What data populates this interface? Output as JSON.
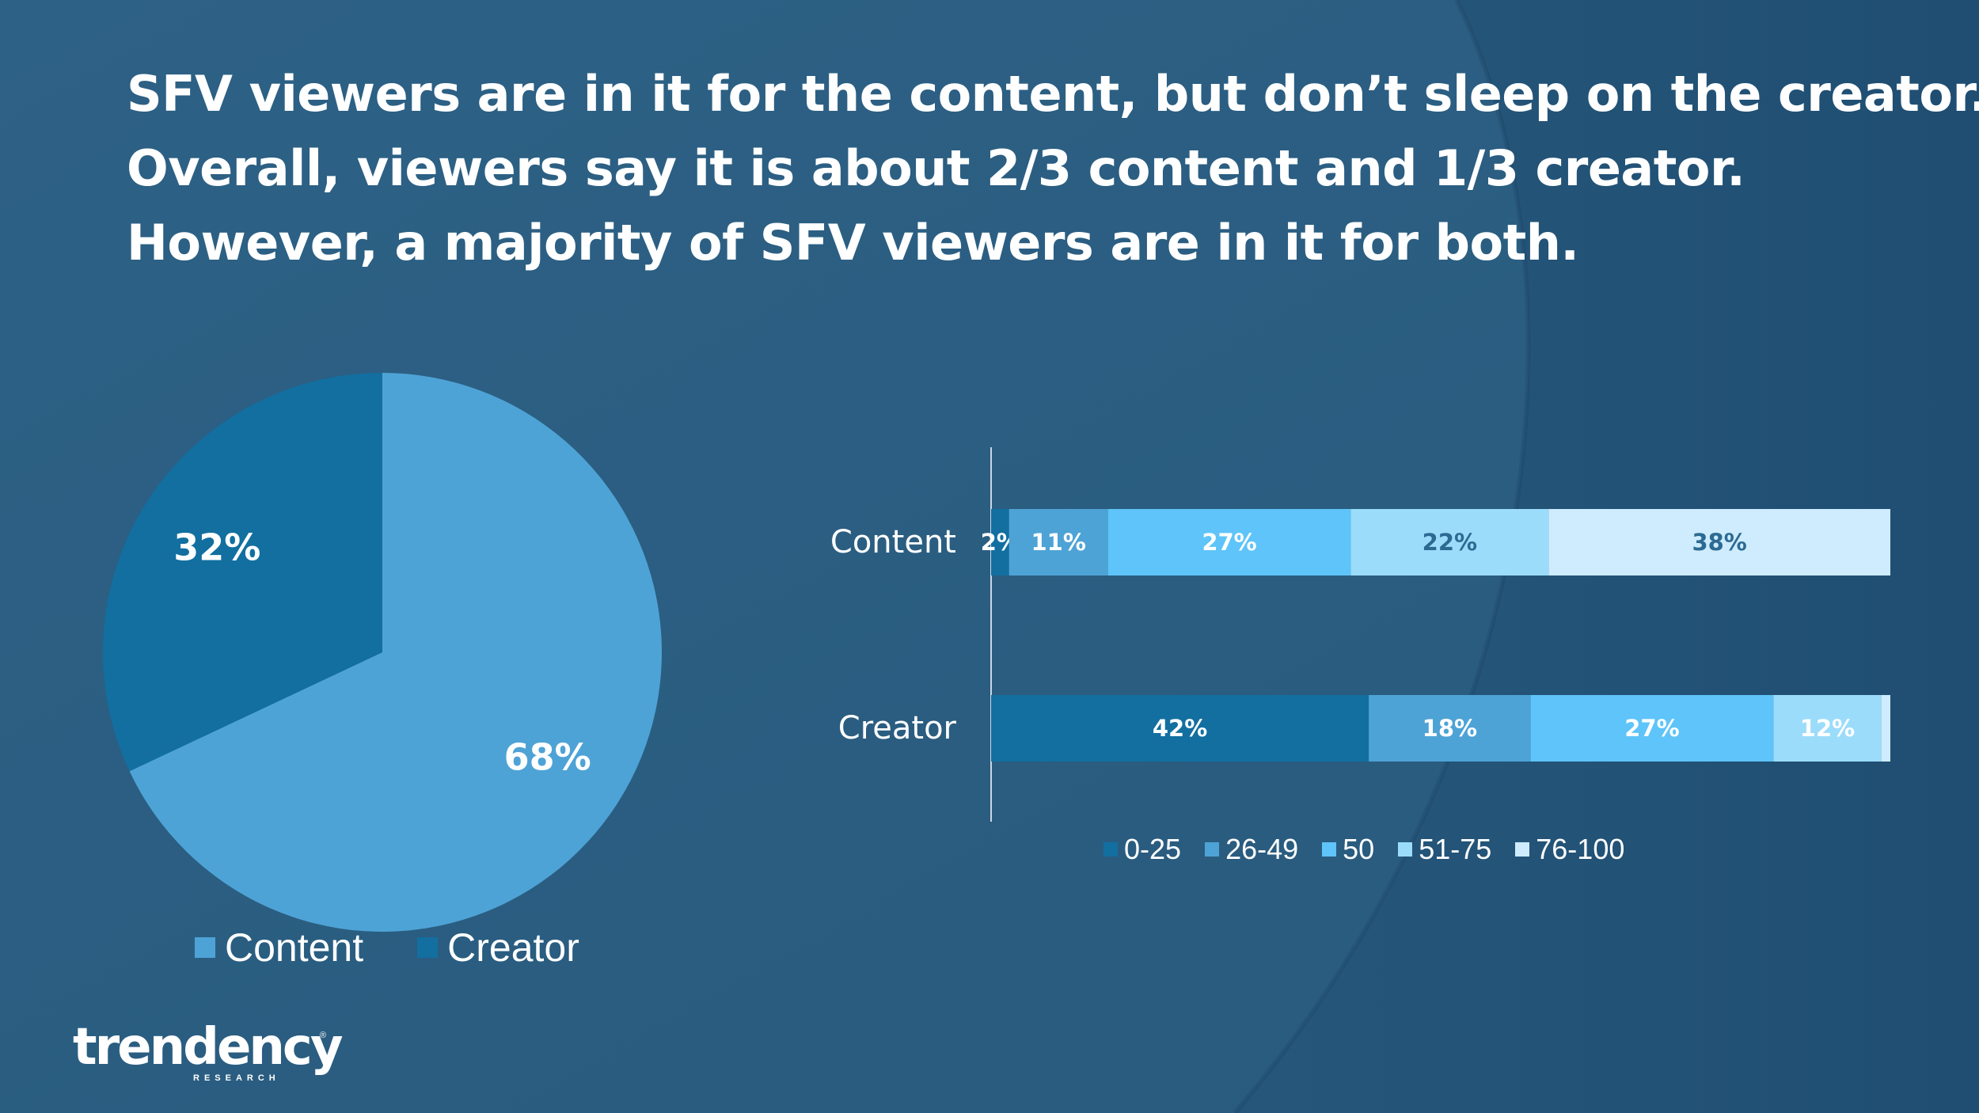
{
  "headline": {
    "line1": "SFV viewers are in it for the content, but don’t sleep on the creator.",
    "line2": "Overall, viewers say it is about 2/3 content and 1/3 creator.",
    "line3": "However, a majority of SFV viewers are in it for both."
  },
  "colors": {
    "background": "#2c5f83",
    "content": "#4ea3d6",
    "creator": "#126fa0",
    "range_0_25": "#126fa0",
    "range_26_49": "#4ea3d6",
    "range_50": "#5ec4f9",
    "range_51_75": "#9cdcfb",
    "range_76_100": "#ceecfd",
    "text": "#ffffff",
    "dark_label": "#2c6a92"
  },
  "chart_data": [
    {
      "type": "pie",
      "slices": [
        {
          "name": "Content",
          "value": 68,
          "label": "68%",
          "color": "#4ea3d6"
        },
        {
          "name": "Creator",
          "value": 32,
          "label": "32%",
          "color": "#126fa0"
        }
      ],
      "legend": [
        "Content",
        "Creator"
      ],
      "legend_position": "bottom"
    },
    {
      "type": "bar",
      "orientation": "horizontal",
      "stacked": true,
      "categories": [
        "Content",
        "Creator"
      ],
      "series": [
        {
          "name": "0-25",
          "color": "#126fa0",
          "values": [
            2,
            42
          ],
          "labels": [
            "2%",
            "42%"
          ]
        },
        {
          "name": "26-49",
          "color": "#4ea3d6",
          "values": [
            11,
            18
          ],
          "labels": [
            "11%",
            "18%"
          ]
        },
        {
          "name": "50",
          "color": "#5ec4f9",
          "values": [
            27,
            27
          ],
          "labels": [
            "27%",
            "27%"
          ]
        },
        {
          "name": "51-75",
          "color": "#9cdcfb",
          "values": [
            22,
            12
          ],
          "labels": [
            "22%",
            "12%"
          ]
        },
        {
          "name": "76-100",
          "color": "#ceecfd",
          "values": [
            38,
            1
          ],
          "labels": [
            "38%",
            ""
          ]
        }
      ],
      "xlim": [
        0,
        100
      ],
      "legend_position": "bottom",
      "grid": false
    }
  ],
  "logo": {
    "name": "trendency",
    "subtitle": "RESEARCH",
    "mark": "®"
  }
}
